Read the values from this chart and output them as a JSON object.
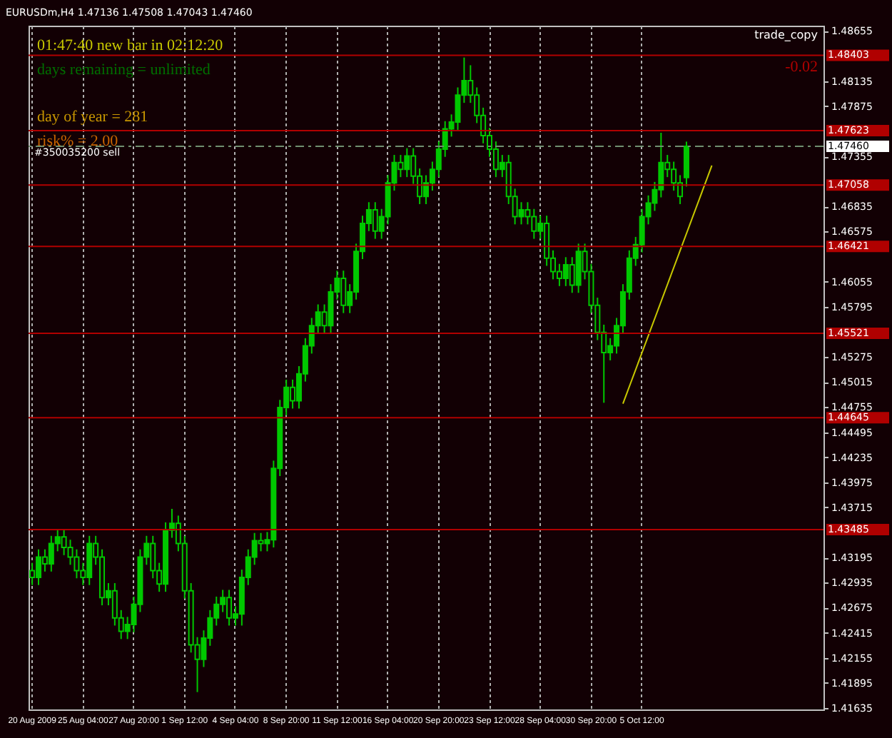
{
  "chart_data": {
    "type": "candlestick",
    "title": "EURUSDm,H4  1.47136  1.47508  1.47043  1.47460",
    "color": "#00c800",
    "categories": [
      "20 Aug 2009",
      null,
      null,
      null,
      null,
      null,
      null,
      null,
      "25 Aug 04:00",
      null,
      null,
      null,
      null,
      null,
      null,
      null,
      "27 Aug 20:00",
      null,
      null,
      null,
      null,
      null,
      null,
      null,
      "1 Sep 12:00",
      null,
      null,
      null,
      null,
      null,
      null,
      null,
      "4 Sep 04:00",
      null,
      null,
      null,
      null,
      null,
      null,
      null,
      "8 Sep 20:00",
      null,
      null,
      null,
      null,
      null,
      null,
      null,
      "11 Sep 12:00",
      null,
      null,
      null,
      null,
      null,
      null,
      null,
      "16 Sep 04:00",
      null,
      null,
      null,
      null,
      null,
      null,
      null,
      "20 Sep 20:00",
      null,
      null,
      null,
      null,
      null,
      null,
      null,
      "23 Sep 12:00",
      null,
      null,
      null,
      null,
      null,
      null,
      null,
      "28 Sep 04:00",
      null,
      null,
      null,
      null,
      null,
      null,
      null,
      "30 Sep 20:00",
      null,
      null,
      null,
      null,
      null,
      null,
      null,
      "5 Oct 12:00",
      null,
      null,
      null,
      null,
      null,
      null,
      null,
      null,
      null,
      null,
      null,
      null,
      null,
      null,
      null,
      null,
      null,
      null,
      null,
      null,
      null,
      null,
      null,
      null,
      null,
      null,
      null,
      null
    ],
    "ohlc": [
      [
        1.4306,
        1.4314,
        1.4291,
        1.4299
      ],
      [
        1.4299,
        1.4328,
        1.4291,
        1.432
      ],
      [
        1.432,
        1.4328,
        1.4305,
        1.4313
      ],
      [
        1.4313,
        1.4342,
        1.4305,
        1.4334
      ],
      [
        1.4334,
        1.4349,
        1.4326,
        1.4341
      ],
      [
        1.4341,
        1.4349,
        1.4322,
        1.433
      ],
      [
        1.433,
        1.4338,
        1.4312,
        1.432
      ],
      [
        1.432,
        1.4328,
        1.4298,
        1.4306
      ],
      [
        1.4306,
        1.4314,
        1.4291,
        1.4299
      ],
      [
        1.4299,
        1.4342,
        1.4291,
        1.4334
      ],
      [
        1.4334,
        1.4342,
        1.4312,
        1.432
      ],
      [
        1.432,
        1.4328,
        1.427,
        1.4278
      ],
      [
        1.4278,
        1.4293,
        1.427,
        1.4285
      ],
      [
        1.4285,
        1.4293,
        1.4249,
        1.4257
      ],
      [
        1.4257,
        1.4265,
        1.4235,
        1.4243
      ],
      [
        1.4243,
        1.4258,
        1.4235,
        1.425
      ],
      [
        1.425,
        1.4279,
        1.4242,
        1.4271
      ],
      [
        1.4271,
        1.4328,
        1.4263,
        1.432
      ],
      [
        1.432,
        1.4342,
        1.4312,
        1.4334
      ],
      [
        1.4334,
        1.4342,
        1.4298,
        1.4306
      ],
      [
        1.4306,
        1.4314,
        1.4284,
        1.4292
      ],
      [
        1.4292,
        1.4356,
        1.4284,
        1.4348
      ],
      [
        1.4348,
        1.437,
        1.434,
        1.4355
      ],
      [
        1.4355,
        1.4363,
        1.4326,
        1.4334
      ],
      [
        1.4334,
        1.4342,
        1.4277,
        1.4285
      ],
      [
        1.4285,
        1.4293,
        1.4221,
        1.4229
      ],
      [
        1.4229,
        1.4237,
        1.418,
        1.4214
      ],
      [
        1.4214,
        1.4244,
        1.4206,
        1.4236
      ],
      [
        1.4236,
        1.4265,
        1.4228,
        1.4257
      ],
      [
        1.4257,
        1.4279,
        1.4249,
        1.4271
      ],
      [
        1.4271,
        1.4286,
        1.4263,
        1.4278
      ],
      [
        1.4278,
        1.4286,
        1.4249,
        1.4257
      ],
      [
        1.4257,
        1.4269,
        1.4249,
        1.4261
      ],
      [
        1.4261,
        1.4307,
        1.4249,
        1.4299
      ],
      [
        1.4299,
        1.4328,
        1.4291,
        1.432
      ],
      [
        1.432,
        1.4345,
        1.4312,
        1.4337
      ],
      [
        1.4337,
        1.4345,
        1.4326,
        1.4334
      ],
      [
        1.4334,
        1.4346,
        1.4326,
        1.4338
      ],
      [
        1.4338,
        1.442,
        1.433,
        1.4412
      ],
      [
        1.4412,
        1.4483,
        1.4404,
        1.4475
      ],
      [
        1.4475,
        1.4504,
        1.4467,
        1.4496
      ],
      [
        1.4496,
        1.4504,
        1.4474,
        1.4482
      ],
      [
        1.4482,
        1.4518,
        1.4474,
        1.451
      ],
      [
        1.451,
        1.4547,
        1.4502,
        1.4539
      ],
      [
        1.4539,
        1.4568,
        1.4531,
        1.456
      ],
      [
        1.456,
        1.4582,
        1.4552,
        1.4574
      ],
      [
        1.4574,
        1.4582,
        1.4552,
        1.456
      ],
      [
        1.456,
        1.4603,
        1.4552,
        1.4595
      ],
      [
        1.4595,
        1.4617,
        1.4587,
        1.4609
      ],
      [
        1.4609,
        1.4617,
        1.4573,
        1.4581
      ],
      [
        1.4581,
        1.4603,
        1.4573,
        1.4595
      ],
      [
        1.4595,
        1.4645,
        1.4587,
        1.4637
      ],
      [
        1.4637,
        1.4674,
        1.4629,
        1.4666
      ],
      [
        1.4666,
        1.4688,
        1.4658,
        1.468
      ],
      [
        1.468,
        1.4688,
        1.465,
        1.4658
      ],
      [
        1.4658,
        1.4681,
        1.465,
        1.4673
      ],
      [
        1.4673,
        1.4716,
        1.4665,
        1.4708
      ],
      [
        1.4708,
        1.4737,
        1.47,
        1.4729
      ],
      [
        1.4729,
        1.4737,
        1.4714,
        1.4722
      ],
      [
        1.4722,
        1.4744,
        1.4714,
        1.4736
      ],
      [
        1.4736,
        1.4744,
        1.4707,
        1.4715
      ],
      [
        1.4715,
        1.4723,
        1.4686,
        1.4694
      ],
      [
        1.4694,
        1.4716,
        1.4686,
        1.4708
      ],
      [
        1.4708,
        1.473,
        1.47,
        1.4722
      ],
      [
        1.4722,
        1.4751,
        1.4714,
        1.4743
      ],
      [
        1.4743,
        1.4772,
        1.4735,
        1.4764
      ],
      [
        1.4764,
        1.4779,
        1.4756,
        1.4771
      ],
      [
        1.4771,
        1.4807,
        1.4763,
        1.4799
      ],
      [
        1.4799,
        1.4838,
        1.4791,
        1.4814
      ],
      [
        1.4814,
        1.483,
        1.4791,
        1.4799
      ],
      [
        1.4799,
        1.4807,
        1.477,
        1.4778
      ],
      [
        1.4778,
        1.4786,
        1.4749,
        1.4757
      ],
      [
        1.4757,
        1.4765,
        1.4735,
        1.4743
      ],
      [
        1.4743,
        1.4751,
        1.4714,
        1.4722
      ],
      [
        1.4722,
        1.4737,
        1.4714,
        1.4729
      ],
      [
        1.4729,
        1.4737,
        1.4686,
        1.4694
      ],
      [
        1.4694,
        1.4702,
        1.4665,
        1.4673
      ],
      [
        1.4673,
        1.4688,
        1.4665,
        1.468
      ],
      [
        1.468,
        1.4688,
        1.4665,
        1.4673
      ],
      [
        1.4673,
        1.4681,
        1.465,
        1.4658
      ],
      [
        1.4658,
        1.4674,
        1.465,
        1.4666
      ],
      [
        1.4666,
        1.4674,
        1.4622,
        1.463
      ],
      [
        1.463,
        1.4638,
        1.4608,
        1.4616
      ],
      [
        1.4616,
        1.4624,
        1.4601,
        1.4609
      ],
      [
        1.4609,
        1.4631,
        1.4601,
        1.4623
      ],
      [
        1.4623,
        1.4631,
        1.4594,
        1.4602
      ],
      [
        1.4602,
        1.4645,
        1.4594,
        1.4637
      ],
      [
        1.4637,
        1.4645,
        1.4608,
        1.4616
      ],
      [
        1.4616,
        1.4624,
        1.4573,
        1.4581
      ],
      [
        1.4581,
        1.4589,
        1.4545,
        1.4553
      ],
      [
        1.4553,
        1.4561,
        1.448,
        1.4532
      ],
      [
        1.4532,
        1.4547,
        1.4524,
        1.4539
      ],
      [
        1.4539,
        1.4568,
        1.4531,
        1.456
      ],
      [
        1.456,
        1.4603,
        1.4552,
        1.4595
      ],
      [
        1.4595,
        1.4638,
        1.4587,
        1.463
      ],
      [
        1.463,
        1.4652,
        1.4622,
        1.4644
      ],
      [
        1.4644,
        1.4681,
        1.4636,
        1.4673
      ],
      [
        1.4673,
        1.4695,
        1.4665,
        1.4687
      ],
      [
        1.4687,
        1.4709,
        1.4679,
        1.4701
      ],
      [
        1.4701,
        1.476,
        1.4693,
        1.4729
      ],
      [
        1.4729,
        1.4737,
        1.4714,
        1.4722
      ],
      [
        1.4722,
        1.473,
        1.47,
        1.4708
      ],
      [
        1.4708,
        1.4716,
        1.4686,
        1.4694
      ],
      [
        1.47136,
        1.47508,
        1.47043,
        1.4746
      ],
      null,
      null,
      null,
      null,
      null,
      null,
      null,
      null,
      null,
      null,
      null,
      null,
      null,
      null,
      null,
      null,
      null,
      null,
      null,
      null,
      null
    ],
    "series": [
      {
        "type": "line",
        "color": "#c8c800",
        "values": [
          null,
          null,
          null,
          null,
          null,
          null,
          null,
          null,
          null,
          null,
          null,
          null,
          null,
          null,
          null,
          null,
          null,
          null,
          null,
          null,
          null,
          null,
          null,
          null,
          null,
          null,
          null,
          null,
          null,
          null,
          null,
          null,
          null,
          null,
          null,
          null,
          null,
          null,
          null,
          null,
          null,
          null,
          null,
          null,
          null,
          null,
          null,
          null,
          null,
          null,
          null,
          null,
          null,
          null,
          null,
          null,
          null,
          null,
          null,
          null,
          null,
          null,
          null,
          null,
          null,
          null,
          null,
          null,
          null,
          null,
          null,
          null,
          null,
          null,
          null,
          null,
          null,
          null,
          null,
          null,
          null,
          null,
          null,
          null,
          null,
          null,
          null,
          null,
          null,
          null,
          null,
          null,
          null,
          1.4479,
          null,
          null,
          null,
          null,
          null,
          null,
          null,
          null,
          null,
          null,
          null,
          null,
          null,
          1.4726,
          null,
          null,
          null,
          null,
          null,
          null,
          null,
          null,
          null,
          null,
          null,
          null,
          null,
          null,
          null,
          null,
          null
        ]
      }
    ],
    "ylim": [
      1.4162,
      1.4871
    ],
    "yticks": [
      1.48655,
      1.48135,
      1.47875,
      1.47355,
      1.46835,
      1.46575,
      1.46055,
      1.45795,
      1.45275,
      1.45015,
      1.44755,
      1.44495,
      1.44235,
      1.43975,
      1.43715,
      1.43195,
      1.42935,
      1.42675,
      1.42415,
      1.42155,
      1.41895,
      1.41635
    ],
    "grid": "x",
    "ref_lines": [
      {
        "axis": "y",
        "value": 1.48403,
        "label": "1.48403",
        "color": "#b00000"
      },
      {
        "axis": "y",
        "value": 1.47623,
        "label": "1.47623",
        "color": "#b00000"
      },
      {
        "axis": "y",
        "value": 1.4746,
        "label": "1.47460",
        "color": "#6f8f6f",
        "line_style": "dashed"
      },
      {
        "axis": "y",
        "value": 1.47058,
        "label": "1.47058",
        "color": "#b00000"
      },
      {
        "axis": "y",
        "value": 1.46421,
        "label": "1.46421",
        "color": "#b00000"
      },
      {
        "axis": "y",
        "value": 1.45521,
        "label": "1.45521",
        "color": "#b00000"
      },
      {
        "axis": "y",
        "value": 1.44645,
        "label": "1.44645",
        "color": "#b00000"
      },
      {
        "axis": "y",
        "value": 1.43485,
        "label": "1.43485",
        "color": "#b00000"
      }
    ],
    "annotations": [
      "01:47:40   new bar in 02:12:20",
      "days remaining = unlimited",
      "day of year = 281",
      "risk% = 2.00",
      "#350035200 sell",
      "-0.02",
      "trade_copy"
    ]
  }
}
